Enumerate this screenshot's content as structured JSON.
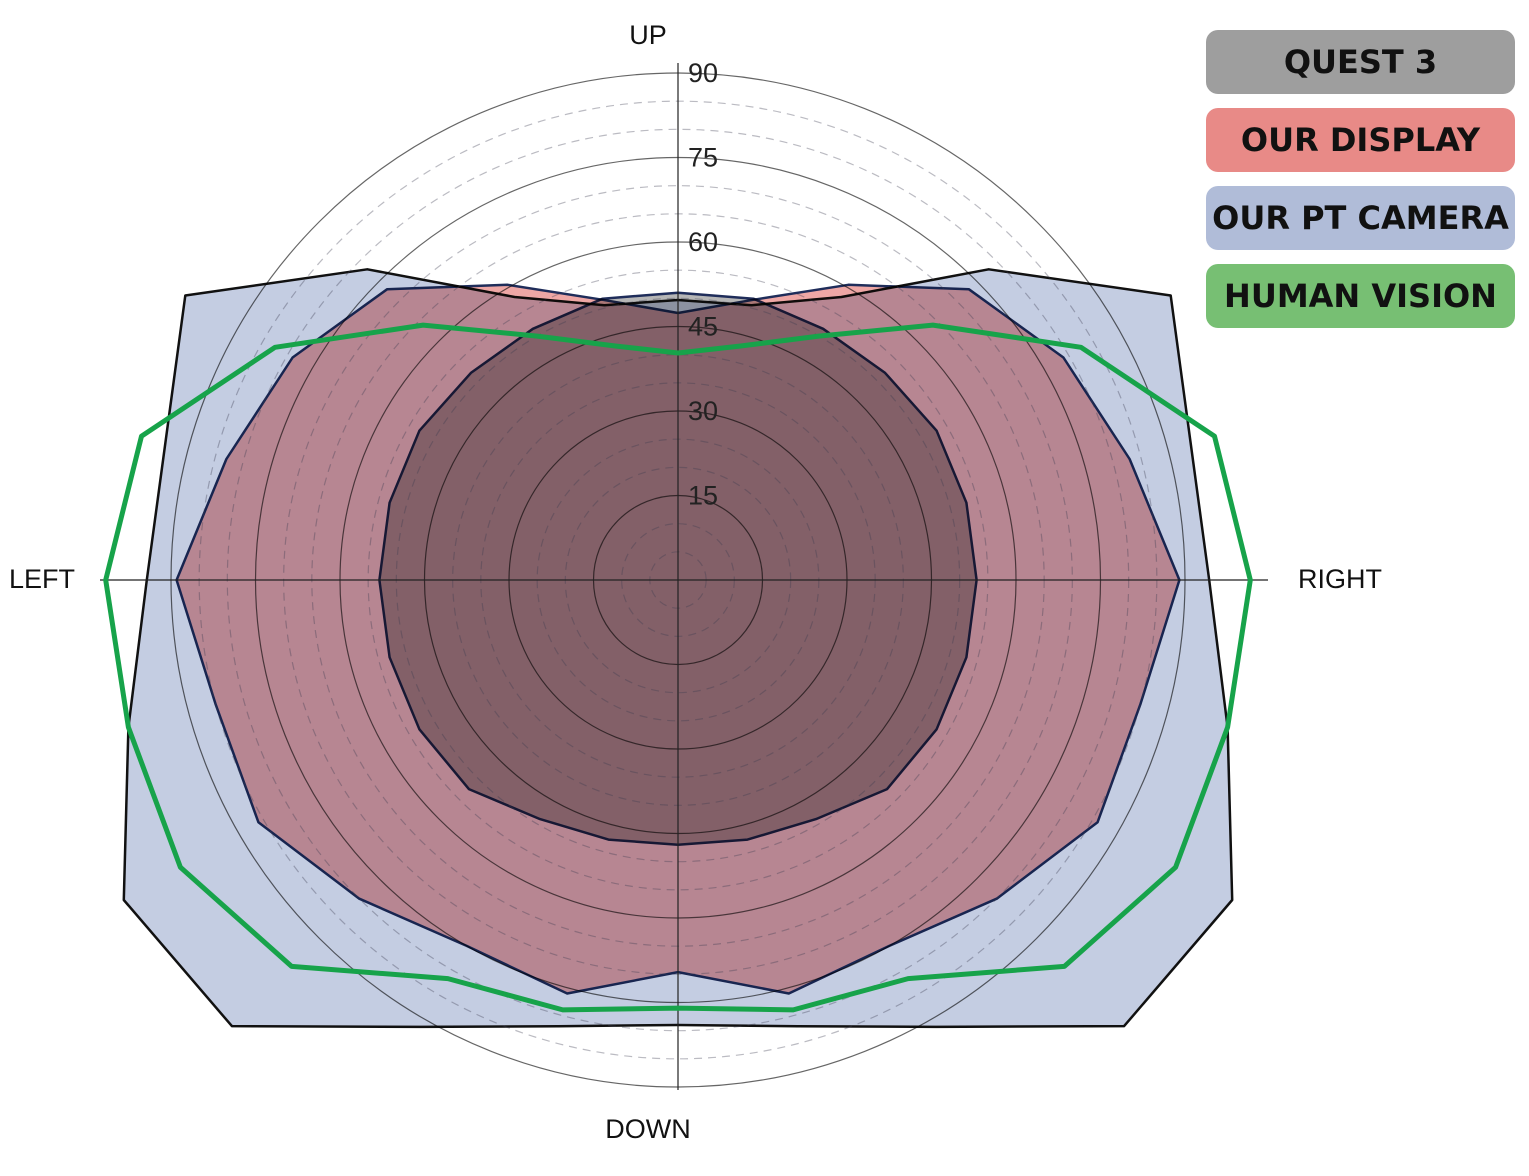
{
  "chart_data": {
    "type": "polar",
    "direction_labels": {
      "up": "UP",
      "down": "DOWN",
      "left": "LEFT",
      "right": "RIGHT"
    },
    "theta": [
      0,
      15,
      30,
      45,
      60,
      75,
      90,
      105,
      120,
      135,
      150,
      165,
      180,
      195,
      210,
      225,
      240,
      255,
      270,
      285,
      300,
      315,
      330,
      345
    ],
    "rlim": [
      0,
      90
    ],
    "rticks": [
      15,
      30,
      45,
      60,
      75,
      90
    ],
    "rminor": [
      5,
      10,
      20,
      25,
      35,
      40,
      50,
      55,
      65,
      70,
      80,
      85
    ],
    "legend": "upper right",
    "series": [
      {
        "name": "QUEST 3",
        "color": "#9e9e9e",
        "fill": true,
        "values": [
          53,
          53,
          53,
          52,
          51.5,
          51.7,
          51,
          51.7,
          51.5,
          52,
          53,
          53,
          53,
          53,
          53,
          52.5,
          49,
          47.7,
          47,
          47.7,
          49,
          52.5,
          53,
          53
        ]
      },
      {
        "name": "OUR DISPLAY",
        "color": "#e88a87",
        "fill": true,
        "values": [
          89,
          83,
          79,
          73,
          60.5,
          51.5,
          47.4,
          51.5,
          60.5,
          73,
          79,
          83,
          89,
          85,
          86,
          80,
          75,
          76,
          69.6,
          76,
          75,
          80,
          86,
          85
        ]
      },
      {
        "name": "OUR PT CAMERA",
        "color": "#b0bcd8",
        "fill": true,
        "values": [
          94.3,
          94.2,
          101,
          78,
          58,
          50.5,
          49.7,
          50.5,
          58,
          78,
          101,
          94.2,
          94.3,
          101,
          113.6,
          112,
          91.6,
          82,
          79,
          82,
          91.6,
          112,
          113.6,
          101
        ]
      },
      {
        "name": "HUMAN VISION",
        "color": "#77bf73",
        "fill": false,
        "values": [
          101.6,
          98.6,
          82.6,
          64,
          50,
          43,
          40.3,
          43,
          50,
          64,
          82.6,
          98.6,
          101.6,
          101,
          102,
          97,
          81.7,
          79,
          76,
          79,
          81.7,
          97,
          102,
          101
        ]
      }
    ]
  }
}
